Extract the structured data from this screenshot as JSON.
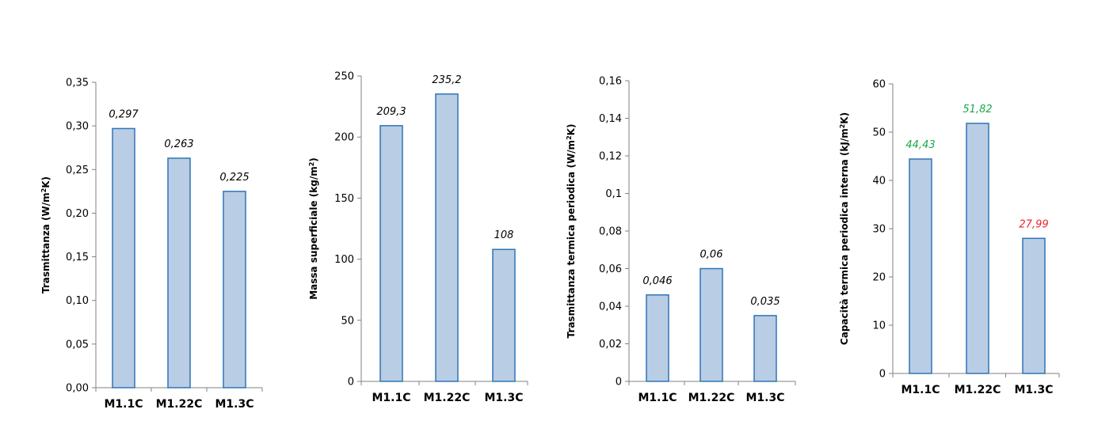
{
  "chart_data": [
    {
      "type": "bar",
      "ylabel_main": "Trasmittanza  (W/m",
      "ylabel_sup": "2",
      "ylabel_end": "K)",
      "categories": [
        "M1.1C",
        "M1.22C",
        "M1.3C"
      ],
      "values": [
        0.297,
        0.263,
        0.225
      ],
      "value_labels": [
        "0,297",
        "0,263",
        "0,225"
      ],
      "label_colors": [
        "#000000",
        "#000000",
        "#000000"
      ],
      "ylim": [
        0,
        0.35
      ],
      "yticks": [
        0,
        0.05,
        0.1,
        0.15,
        0.2,
        0.25,
        0.3,
        0.35
      ],
      "ytick_labels": [
        "0,00",
        "0,05",
        "0,10",
        "0,15",
        "0,20",
        "0,25",
        "0,30",
        "0,35"
      ],
      "grid": false
    },
    {
      "type": "bar",
      "ylabel_main": "Massa superficiale  (kg/m",
      "ylabel_sup": "2",
      "ylabel_end": ")",
      "categories": [
        "M1.1C",
        "M1.22C",
        "M1.3C"
      ],
      "values": [
        209.3,
        235.2,
        108
      ],
      "value_labels": [
        "209,3",
        "235,2",
        "108"
      ],
      "label_colors": [
        "#000000",
        "#000000",
        "#000000"
      ],
      "ylim": [
        0,
        250
      ],
      "yticks": [
        0,
        50,
        100,
        150,
        200,
        250
      ],
      "ytick_labels": [
        "0",
        "50",
        "100",
        "150",
        "200",
        "250"
      ],
      "grid": false
    },
    {
      "type": "bar",
      "ylabel_main": "Trasmittanza termica periodica  (W/m",
      "ylabel_sup": "2",
      "ylabel_end": "K)",
      "categories": [
        "M1.1C",
        "M1.22C",
        "M1.3C"
      ],
      "values": [
        0.046,
        0.06,
        0.035
      ],
      "value_labels": [
        "0,046",
        "0,06",
        "0,035"
      ],
      "label_colors": [
        "#000000",
        "#000000",
        "#000000"
      ],
      "ylim": [
        0,
        0.16
      ],
      "yticks": [
        0,
        0.02,
        0.04,
        0.06,
        0.08,
        0.1,
        0.12,
        0.14,
        0.16
      ],
      "ytick_labels": [
        "0",
        "0,02",
        "0,04",
        "0,06",
        "0,08",
        "0,1",
        "0,12",
        "0,14",
        "0,16"
      ],
      "grid": false
    },
    {
      "type": "bar",
      "ylabel_main": "Capacità termica periodica interna  (kJ/m",
      "ylabel_sup": "2",
      "ylabel_end": "K)",
      "categories": [
        "M1.1C",
        "M1.22C",
        "M1.3C"
      ],
      "values": [
        44.43,
        51.82,
        27.99
      ],
      "value_labels": [
        "44,43",
        "51,82",
        "27,99"
      ],
      "label_colors": [
        "#1aa84a",
        "#1aa84a",
        "#e8262b"
      ],
      "ylim": [
        0,
        60
      ],
      "yticks": [
        0,
        10,
        20,
        30,
        40,
        50,
        60
      ],
      "ytick_labels": [
        "0",
        "10",
        "20",
        "30",
        "40",
        "50",
        "60"
      ],
      "grid": false
    }
  ]
}
